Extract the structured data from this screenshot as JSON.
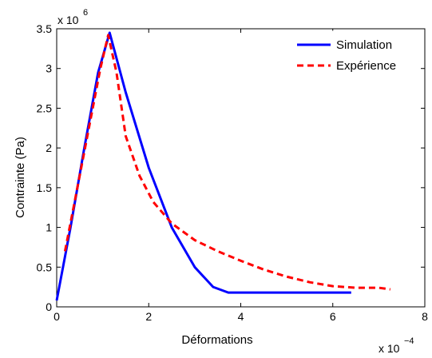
{
  "chart_data": {
    "type": "line",
    "title": "",
    "xlabel": "Déformations",
    "ylabel": "Contrainte (Pa)",
    "x_multiplier": {
      "base": "x 10",
      "exponent": "−4"
    },
    "y_multiplier": {
      "base": "x 10",
      "exponent": "6"
    },
    "xlim": [
      0,
      8
    ],
    "ylim": [
      0,
      3.5
    ],
    "xticks": [
      0,
      2,
      4,
      6,
      8
    ],
    "xtick_labels": [
      "0",
      "2",
      "4",
      "6",
      "8"
    ],
    "yticks": [
      0,
      0.5,
      1,
      1.5,
      2,
      2.5,
      3,
      3.5
    ],
    "ytick_labels": [
      "0",
      "0.5",
      "1",
      "1.5",
      "2",
      "2.5",
      "3",
      "3.5"
    ],
    "grid": false,
    "legend_position": "top-right",
    "series": [
      {
        "name": "Simulation",
        "color": "#0000ff",
        "dash": "solid",
        "x": [
          0.0,
          0.3,
          0.6,
          0.9,
          1.15,
          1.5,
          2.0,
          2.5,
          3.0,
          3.4,
          3.73,
          4.5,
          5.5,
          6.4
        ],
        "y": [
          0.08,
          1.0,
          2.0,
          2.95,
          3.45,
          2.7,
          1.75,
          1.0,
          0.5,
          0.25,
          0.18,
          0.18,
          0.18,
          0.18
        ]
      },
      {
        "name": "Expérience",
        "color": "#ff0000",
        "dash": "dashed",
        "x": [
          0.18,
          0.4,
          0.7,
          0.95,
          1.12,
          1.3,
          1.5,
          1.8,
          2.1,
          2.5,
          3.0,
          3.5,
          4.0,
          4.5,
          5.0,
          5.5,
          6.0,
          6.5,
          7.0,
          7.25
        ],
        "y": [
          0.7,
          1.35,
          2.25,
          3.0,
          3.42,
          2.95,
          2.15,
          1.65,
          1.32,
          1.05,
          0.84,
          0.7,
          0.58,
          0.47,
          0.38,
          0.31,
          0.26,
          0.24,
          0.24,
          0.22
        ]
      }
    ]
  }
}
